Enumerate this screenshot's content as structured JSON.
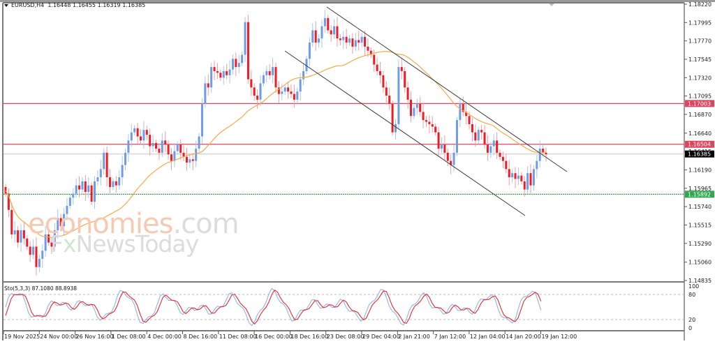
{
  "header": {
    "symbol": "EURUSD,H4",
    "ohlc": "1.16448 1.16455 1.16319 1.16385"
  },
  "stochastic": {
    "label": "Sto(5,3,3) 87.1080 88.8938",
    "levels": [
      "100",
      "80",
      "20",
      "0"
    ]
  },
  "watermark": {
    "line1a": "economies",
    "line1b": ".com",
    "line2a": "F",
    "line2x": "x",
    "line2b": "NewsToday"
  },
  "colors": {
    "bull": "#6f9be8",
    "bull_wick": "#a8c4f2",
    "bear": "#ee1c25",
    "bear_wick": "#f39aa0",
    "ma": "#f4a947",
    "resistance": "#e0455f",
    "support": "#2fa84f",
    "current": "#d6d6d6",
    "channel": "#3a3a3a",
    "stoch_main": "#8fb3ee",
    "stoch_signal": "#e8262f"
  },
  "chart_data": {
    "type": "candlestick",
    "title": "EURUSD,H4",
    "ylim": [
      1.14835,
      1.1822
    ],
    "y_ticks": [
      "1.18220",
      "1.17995",
      "1.17770",
      "1.17545",
      "1.17320",
      "1.17095",
      "1.16870",
      "1.16640",
      "1.16415",
      "1.16190",
      "1.15965",
      "1.15740",
      "1.15515",
      "1.15290",
      "1.15060",
      "1.14835"
    ],
    "x_ticks": [
      "19 Nov 2025",
      "24 Nov 00:00",
      "26 Nov 16:00",
      "1 Dec 08:00",
      "4 Dec 00:00",
      "8 Dec 16:00",
      "11 Dec 08:00",
      "16 Dec 00:00",
      "18 Dec 16:00",
      "23 Dec 08:00",
      "29 Dec 04:00",
      "2 Jan 21:00",
      "7 Jan 12:00",
      "12 Jan 04:00",
      "14 Jan 20:00",
      "19 Jan 12:00"
    ],
    "price_labels": [
      {
        "value": "1.17003",
        "kind": "resistance",
        "color": "#e0455f"
      },
      {
        "value": "1.16504",
        "kind": "resistance",
        "color": "#e0455f"
      },
      {
        "value": "1.16385",
        "kind": "current",
        "color": "#000000"
      },
      {
        "value": "1.15892",
        "kind": "support",
        "color": "#2fa84f"
      }
    ],
    "closes": [
      1.159,
      1.157,
      1.154,
      1.1545,
      1.153,
      1.1545,
      1.1535,
      1.1525,
      1.1515,
      1.1525,
      1.15,
      1.151,
      1.152,
      1.154,
      1.153,
      1.1525,
      1.1545,
      1.156,
      1.155,
      1.1565,
      1.1575,
      1.1585,
      1.159,
      1.16,
      1.1595,
      1.1605,
      1.1592,
      1.16,
      1.158,
      1.1605,
      1.161,
      1.162,
      1.164,
      1.161,
      1.1598,
      1.1605,
      1.16,
      1.161,
      1.1625,
      1.164,
      1.1655,
      1.1665,
      1.167,
      1.166,
      1.1655,
      1.1668,
      1.1662,
      1.1648,
      1.1652,
      1.1645,
      1.164,
      1.1655,
      1.165,
      1.1638,
      1.163,
      1.1642,
      1.165,
      1.164,
      1.1635,
      1.1628,
      1.1632,
      1.163,
      1.1645,
      1.166,
      1.17,
      1.1725,
      1.172,
      1.1745,
      1.174,
      1.1738,
      1.1732,
      1.174,
      1.1735,
      1.1742,
      1.1755,
      1.1745,
      1.175,
      1.176,
      1.18,
      1.173,
      1.172,
      1.171,
      1.1705,
      1.1725,
      1.1735,
      1.174,
      1.1735,
      1.1745,
      1.172,
      1.1712,
      1.1715,
      1.172,
      1.1715,
      1.1712,
      1.1705,
      1.1715,
      1.173,
      1.174,
      1.1755,
      1.1775,
      1.179,
      1.1775,
      1.178,
      1.1795,
      1.1805,
      1.179,
      1.1785,
      1.1795,
      1.178,
      1.1778,
      1.1782,
      1.1775,
      1.178,
      1.177,
      1.1778,
      1.1775,
      1.1782,
      1.177,
      1.1765,
      1.176,
      1.1748,
      1.174,
      1.1735,
      1.172,
      1.171,
      1.17,
      1.1665,
      1.1675,
      1.1745,
      1.174,
      1.172,
      1.1705,
      1.1685,
      1.1695,
      1.17,
      1.169,
      1.168,
      1.1678,
      1.1675,
      1.1672,
      1.1665,
      1.1645,
      1.165,
      1.164,
      1.163,
      1.1625,
      1.164,
      1.168,
      1.17,
      1.169,
      1.1685,
      1.1675,
      1.1665,
      1.1655,
      1.1668,
      1.1665,
      1.165,
      1.164,
      1.1648,
      1.1655,
      1.164,
      1.1635,
      1.163,
      1.162,
      1.161,
      1.1615,
      1.1608,
      1.1612,
      1.1605,
      1.1595,
      1.1615,
      1.16,
      1.162,
      1.163,
      1.1645,
      1.164,
      1.1638
    ],
    "moving_average": {
      "name": "MA (orange)",
      "color": "#f4a947"
    },
    "horizontal_lines": [
      1.17003,
      1.16504,
      1.15892
    ],
    "channel": {
      "upper": [
        [
          468,
          10
        ],
        [
          812,
          246
        ]
      ],
      "lower": [
        [
          408,
          73
        ],
        [
          752,
          309
        ]
      ]
    },
    "stochastic": {
      "k": 87.108,
      "d": 88.8938,
      "levels": [
        80,
        20
      ],
      "ylim": [
        0,
        100
      ]
    }
  }
}
